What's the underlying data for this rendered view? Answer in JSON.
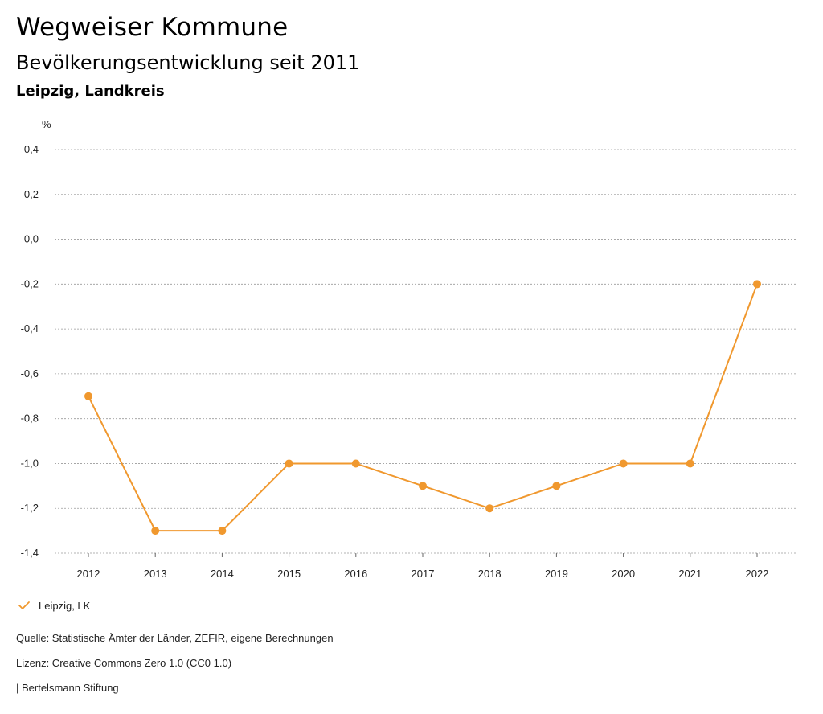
{
  "header": {
    "title": "Wegweiser Kommune",
    "subtitle": "Bevölkerungsentwicklung seit 2011",
    "region": "Leipzig, Landkreis"
  },
  "chart_data": {
    "type": "line",
    "title": "Bevölkerungsentwicklung seit 2011",
    "ylabel": "%",
    "xlabel": "",
    "categories": [
      "2012",
      "2013",
      "2014",
      "2015",
      "2016",
      "2017",
      "2018",
      "2019",
      "2020",
      "2021",
      "2022"
    ],
    "series": [
      {
        "name": "Leipzig, LK",
        "values": [
          -0.7,
          -1.3,
          -1.3,
          -1.0,
          -1.0,
          -1.1,
          -1.2,
          -1.1,
          -1.0,
          -1.0,
          -0.2
        ]
      }
    ],
    "ylim": [
      -1.4,
      0.4
    ],
    "yticks": [
      0.4,
      0.2,
      0.0,
      -0.2,
      -0.4,
      -0.6,
      -0.8,
      -1.0,
      -1.2,
      -1.4
    ],
    "ytick_labels": [
      "0,4",
      "0,2",
      "0,0",
      "-0,2",
      "-0,4",
      "-0,6",
      "-0,8",
      "-1,0",
      "-1,2",
      "-1,4"
    ],
    "grid": true,
    "legend_position": "bottom-left",
    "color": "#F0982E"
  },
  "legend": {
    "icon": "check-icon",
    "label": "Leipzig, LK"
  },
  "footer": {
    "source": "Quelle: Statistische Ämter der Länder, ZEFIR, eigene Berechnungen",
    "license": "Lizenz: Creative Commons Zero 1.0 (CC0 1.0)",
    "publisher": "| Bertelsmann Stiftung"
  }
}
